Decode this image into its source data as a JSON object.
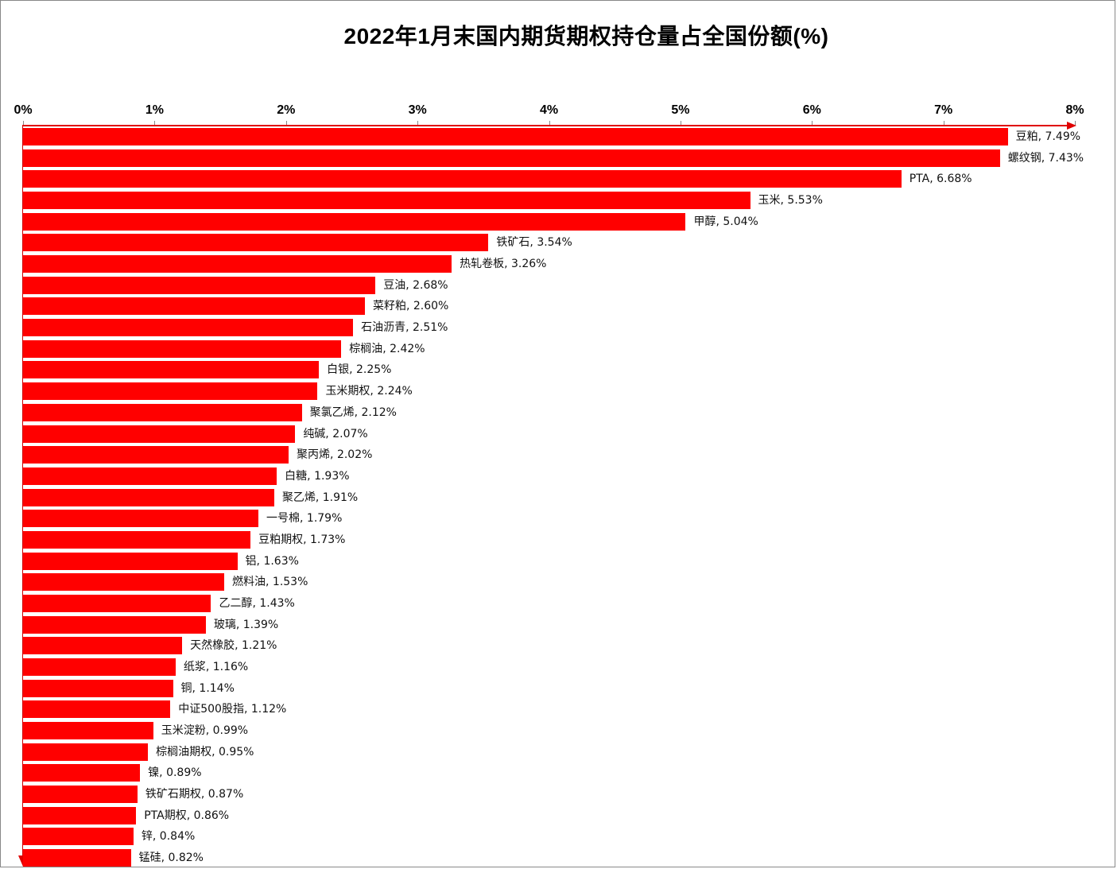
{
  "chart_data": {
    "type": "bar",
    "orientation": "horizontal",
    "title": "2022年1月末国内期货期权持仓量占全国份额(%)",
    "xlabel": "",
    "ylabel": "",
    "xlim": [
      0,
      8
    ],
    "x_ticks": [
      "0%",
      "1%",
      "2%",
      "3%",
      "4%",
      "5%",
      "6%",
      "7%",
      "8%"
    ],
    "grid": false,
    "legend": null,
    "bar_color": "#ff0000",
    "axis_color": "#e00000",
    "categories": [
      "豆粕",
      "螺纹钢",
      "PTA",
      "玉米",
      "甲醇",
      "铁矿石",
      "热轧卷板",
      "豆油",
      "菜籽粕",
      "石油沥青",
      "棕榈油",
      "白银",
      "玉米期权",
      "聚氯乙烯",
      "纯碱",
      "聚丙烯",
      "白糖",
      "聚乙烯",
      "一号棉",
      "豆粕期权",
      "铝",
      "燃料油",
      "乙二醇",
      "玻璃",
      "天然橡胶",
      "纸浆",
      "铜",
      "中证500股指",
      "玉米淀粉",
      "棕榈油期权",
      "镍",
      "铁矿石期权",
      "PTA期权",
      "锌",
      "锰硅"
    ],
    "values": [
      7.49,
      7.43,
      6.68,
      5.53,
      5.04,
      3.54,
      3.26,
      2.68,
      2.6,
      2.51,
      2.42,
      2.25,
      2.24,
      2.12,
      2.07,
      2.02,
      1.93,
      1.91,
      1.79,
      1.73,
      1.63,
      1.53,
      1.43,
      1.39,
      1.21,
      1.16,
      1.14,
      1.12,
      0.99,
      0.95,
      0.89,
      0.87,
      0.86,
      0.84,
      0.82
    ],
    "data_labels": [
      "豆粕, 7.49%",
      "螺纹钢, 7.43%",
      "PTA, 6.68%",
      "玉米, 5.53%",
      "甲醇, 5.04%",
      "铁矿石, 3.54%",
      "热轧卷板, 3.26%",
      "豆油, 2.68%",
      "菜籽粕, 2.60%",
      "石油沥青, 2.51%",
      "棕榈油, 2.42%",
      "白银, 2.25%",
      "玉米期权, 2.24%",
      "聚氯乙烯, 2.12%",
      "纯碱, 2.07%",
      "聚丙烯, 2.02%",
      "白糖, 1.93%",
      "聚乙烯, 1.91%",
      "一号棉, 1.79%",
      "豆粕期权, 1.73%",
      "铝, 1.63%",
      "燃料油, 1.53%",
      "乙二醇, 1.43%",
      "玻璃, 1.39%",
      "天然橡胶, 1.21%",
      "纸浆, 1.16%",
      "铜, 1.14%",
      "中证500股指, 1.12%",
      "玉米淀粉, 0.99%",
      "棕榈油期权, 0.95%",
      "镍, 0.89%",
      "铁矿石期权, 0.87%",
      "PTA期权, 0.86%",
      "锌, 0.84%",
      "锰硅, 0.82%"
    ]
  }
}
